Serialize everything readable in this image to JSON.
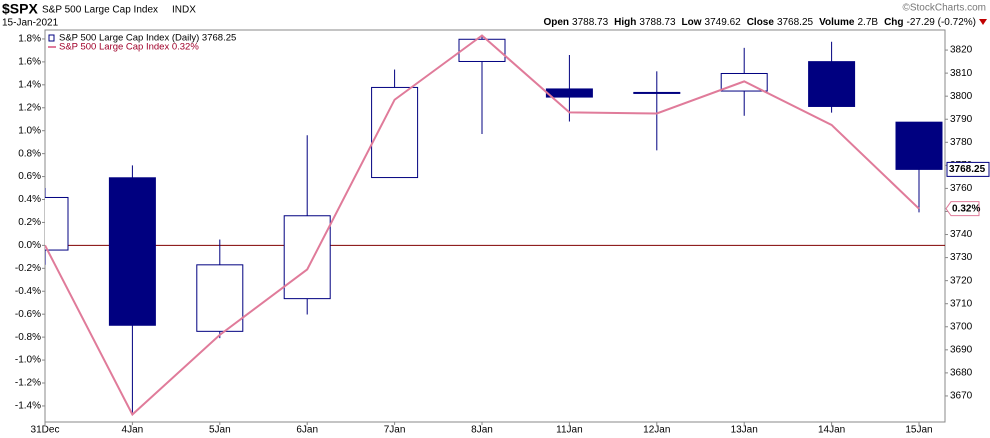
{
  "chart_data": {
    "type": "candlestick",
    "symbol": "$SPX",
    "title": "S&P 500 Large Cap Index",
    "exchange": "INDX",
    "date": "15-Jan-2021",
    "watermark": "©StockCharts.com",
    "header": [
      {
        "label": "Open",
        "value": "3788.73"
      },
      {
        "label": "High",
        "value": "3788.73"
      },
      {
        "label": "Low",
        "value": "3749.62"
      },
      {
        "label": "Close",
        "value": "3768.25"
      },
      {
        "label": "Volume",
        "value": "2.7B"
      },
      {
        "label": "Chg",
        "value": "-27.29 (-0.72%)"
      }
    ],
    "categories": [
      "31Dec",
      "4Jan",
      "5Jan",
      "6Jan",
      "7Jan",
      "8Jan",
      "11Jan",
      "12Jan",
      "13Jan",
      "14Jan",
      "15Jan"
    ],
    "series": [
      {
        "name": "S&P 500 Large Cap Index (Daily) 3768.25",
        "type": "candlestick",
        "axis": "y2",
        "color": "#000080",
        "open": [
          3733.27,
          3764.61,
          3698.02,
          3712.2,
          3764.71,
          3815.05,
          3803.14,
          3801.62,
          3802.23,
          3814.98,
          3788.73
        ],
        "high": [
          3760.2,
          3769.99,
          3737.83,
          3783.04,
          3811.55,
          3826.69,
          3817.86,
          3810.78,
          3820.96,
          3823.6,
          3788.73
        ],
        "low": [
          3726.88,
          3662.71,
          3695.07,
          3705.34,
          3764.71,
          3783.6,
          3789.02,
          3776.51,
          3791.5,
          3792.86,
          3749.62
        ],
        "close": [
          3756.07,
          3700.65,
          3726.86,
          3748.14,
          3803.79,
          3824.68,
          3799.61,
          3801.19,
          3809.84,
          3795.54,
          3768.25
        ],
        "last_label": "3768.25"
      },
      {
        "name": "S&P 500 Large Cap Index 0.32%",
        "type": "line",
        "color": "#e07b9a",
        "values": [
          0,
          -1.475,
          -0.78,
          -0.21,
          1.27,
          1.83,
          1.16,
          1.15,
          1.43,
          1.05,
          0.32
        ],
        "last_label": "0.32%"
      }
    ],
    "ylim": [
      -1.54,
      1.878
    ],
    "yticks": [
      {
        "value": 1.8,
        "label": "1.8%"
      },
      {
        "value": 1.6,
        "label": "1.6%"
      },
      {
        "value": 1.4,
        "label": "1.4%"
      },
      {
        "value": 1.2,
        "label": "1.2%"
      },
      {
        "value": 1.0,
        "label": "1.0%"
      },
      {
        "value": 0.8,
        "label": "0.8%"
      },
      {
        "value": 0.6,
        "label": "0.6%"
      },
      {
        "value": 0.4,
        "label": "0.4%"
      },
      {
        "value": 0.2,
        "label": "0.2%"
      },
      {
        "value": 0,
        "label": "0.0%"
      },
      {
        "value": -0.2,
        "label": "-0.2%"
      },
      {
        "value": -0.4,
        "label": "-0.4%"
      },
      {
        "value": -0.6,
        "label": "-0.6%"
      },
      {
        "value": -0.8,
        "label": "-0.8%"
      },
      {
        "value": -1.0,
        "label": "-1.0%"
      },
      {
        "value": -1.2,
        "label": "-1.2%"
      },
      {
        "value": -1.4,
        "label": "-1.4%"
      }
    ],
    "y2lim": [
      3658.7,
      3828.7
    ],
    "y2ticks": [
      3670,
      3680,
      3690,
      3700,
      3710,
      3720,
      3730,
      3740,
      3750,
      3760,
      3770,
      3780,
      3790,
      3800,
      3810,
      3820
    ],
    "zero_line_color": "#800000"
  }
}
